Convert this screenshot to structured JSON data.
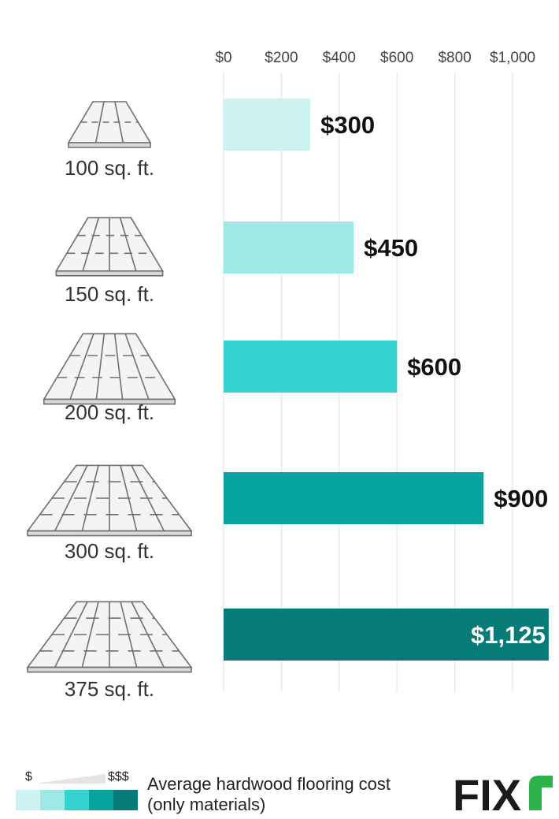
{
  "chart_data": {
    "type": "bar",
    "orientation": "horizontal",
    "categories": [
      "100 sq. ft.",
      "150 sq. ft.",
      "200 sq. ft.",
      "300 sq. ft.",
      "375 sq. ft."
    ],
    "values": [
      300,
      450,
      600,
      900,
      1125
    ],
    "value_labels": [
      "$300",
      "$450",
      "$600",
      "$900",
      "$1,125"
    ],
    "bar_colors": [
      "#ccf2f2",
      "#9ee8e6",
      "#36d2d0",
      "#07a39f",
      "#067b78"
    ],
    "xlim": [
      0,
      1100
    ],
    "x_ticks": [
      0,
      200,
      400,
      600,
      800,
      1000
    ],
    "x_tick_labels": [
      "$0",
      "$200",
      "$400",
      "$600",
      "$800",
      "$1,000"
    ],
    "grid": true,
    "title": "",
    "xlabel": "",
    "ylabel": ""
  },
  "legend": {
    "low_symbol": "$",
    "high_symbol": "$$$",
    "text_line1": "Average hardwood flooring cost",
    "text_line2": "(only materials)",
    "swatches": [
      "#ccf2f2",
      "#9ee8e6",
      "#36d2d0",
      "#07a39f",
      "#067b78"
    ]
  },
  "brand": {
    "logo_text": "FIX",
    "logo_mark_color": "#2db24a"
  }
}
